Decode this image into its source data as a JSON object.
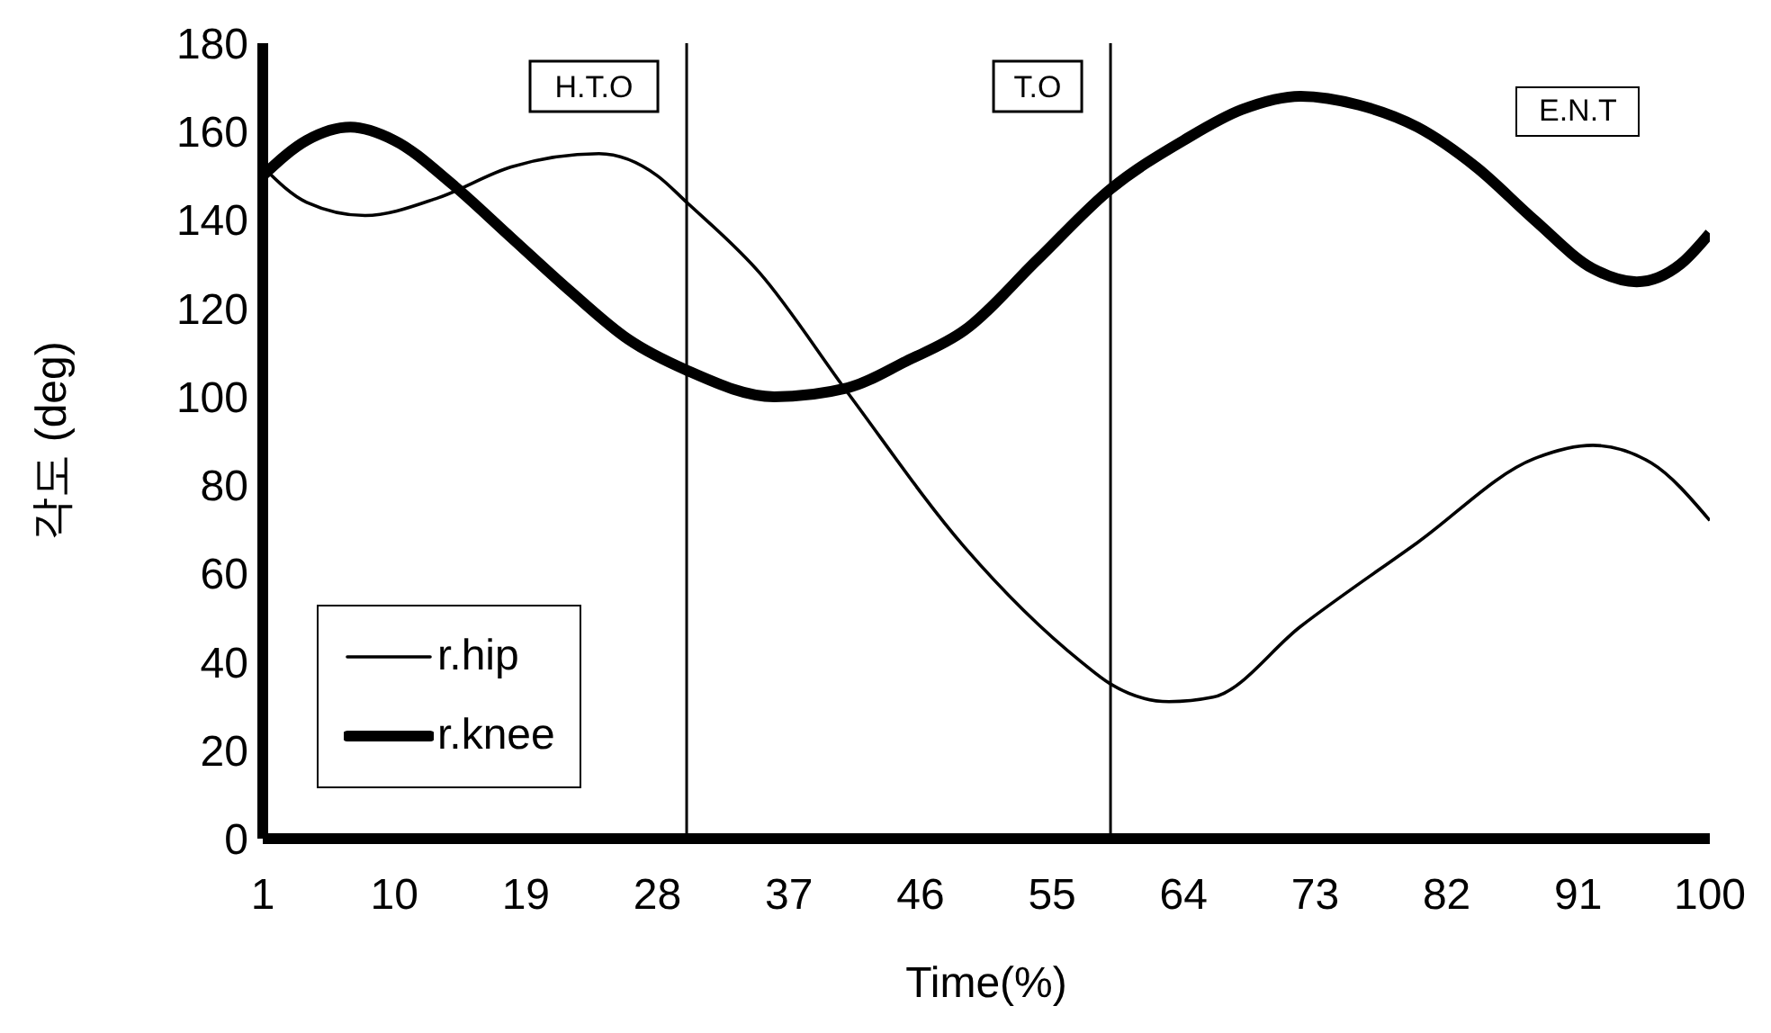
{
  "chart_data": {
    "type": "line",
    "xlabel": "Time(%)",
    "ylabel": "각도 (deg)",
    "xlim": [
      1,
      100
    ],
    "xticks": [
      1,
      10,
      19,
      28,
      37,
      46,
      55,
      64,
      73,
      82,
      91,
      100
    ],
    "ylim": [
      0,
      180
    ],
    "yticks": [
      0,
      20,
      40,
      60,
      80,
      100,
      120,
      140,
      160,
      180
    ],
    "grid": false,
    "legend": "bottom left",
    "marker": "none",
    "line_style": "solid",
    "series": [
      {
        "name": "r.hip",
        "color": "#000000",
        "x": [
          1,
          4,
          8,
          13,
          18,
          24,
          28,
          30,
          35,
          41,
          49,
          57,
          59,
          63,
          66,
          72,
          80,
          88,
          92,
          96,
          100
        ],
        "values": [
          152,
          144,
          141,
          145,
          152,
          155,
          150,
          144,
          128,
          101,
          66,
          40,
          35,
          31,
          32,
          48,
          67,
          86,
          89,
          85,
          72
        ]
      },
      {
        "name": "r.knee",
        "color": "#000000",
        "x": [
          1,
          4,
          7,
          10,
          14,
          18,
          22,
          26,
          30,
          36,
          41,
          45,
          49,
          54,
          59,
          64,
          68,
          72,
          76,
          80,
          84,
          88,
          92,
          95,
          98,
          100
        ],
        "values": [
          150,
          158,
          161,
          158,
          148,
          136,
          124,
          113,
          106,
          100,
          102,
          108,
          115,
          131,
          147,
          158,
          165,
          168,
          166,
          161,
          152,
          140,
          129,
          126,
          130,
          137
        ]
      }
    ],
    "ref_lines": [
      {
        "axis": "x",
        "value": 30,
        "label": "H.T.O",
        "color": "#000000"
      },
      {
        "axis": "x",
        "value": 59,
        "label": "T.O",
        "color": "#000000"
      }
    ],
    "annotations": [
      "E.N.T"
    ]
  }
}
